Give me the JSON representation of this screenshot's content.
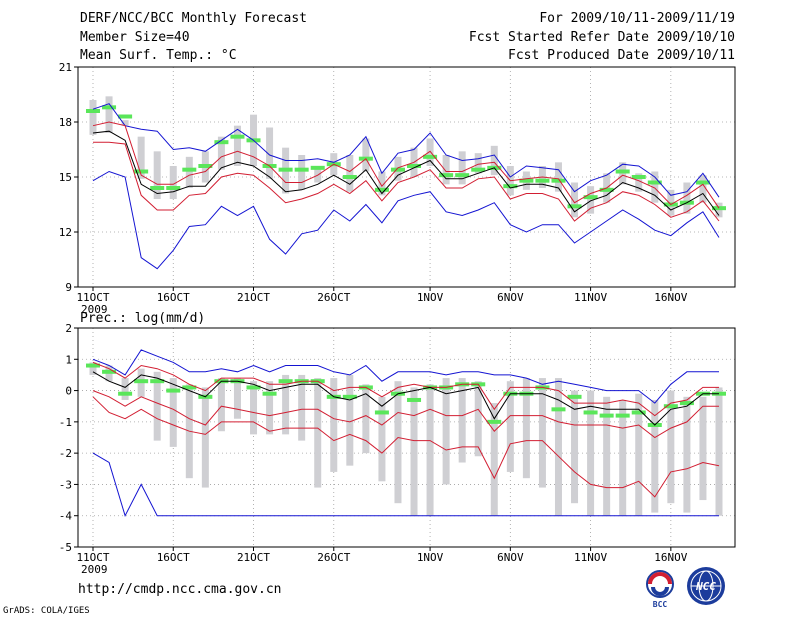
{
  "header": {
    "title": "DERF/NCC/BCC Monthly Forecast",
    "member": "Member Size=40",
    "variable": "Mean Surf. Temp.: °C",
    "period": "For 2009/10/11-2009/11/19",
    "refer": "Fcst Started Refer Date 2009/10/10",
    "produced": "Fcst Produced Date 2009/10/11"
  },
  "footer": {
    "url": "http://cmdp.ncc.cma.gov.cn",
    "grads": "GrADS: COLA/IGES",
    "logo_bcc": "BCC",
    "logo_ncc": "NCC"
  },
  "colors": {
    "max_min": "#1414d2",
    "spread": "#d21e32",
    "mean": "#000000",
    "median": "#5ae65a",
    "box": "#cfcfd3",
    "grid": "#a0a0a0"
  },
  "chart_data": [
    {
      "type": "line",
      "title": "Mean Surf. Temp.: °C",
      "days": 40,
      "x_tick_labels": [
        "11OCT",
        "16OCT",
        "21OCT",
        "26OCT",
        "1NOV",
        "6NOV",
        "11NOV",
        "16NOV"
      ],
      "x_tick_days": [
        0,
        5,
        10,
        15,
        21,
        26,
        31,
        36
      ],
      "year_label": "2009",
      "ylim": [
        9,
        21
      ],
      "y_ticks": [
        9,
        12,
        15,
        18,
        21
      ],
      "series": [
        {
          "name": "max",
          "values": [
            18.7,
            19.0,
            17.8,
            17.6,
            17.5,
            16.5,
            16.6,
            16.4,
            17.0,
            17.6,
            17.0,
            16.2,
            15.9,
            15.9,
            16.0,
            15.8,
            16.2,
            17.2,
            15.2,
            16.3,
            16.5,
            17.4,
            16.2,
            15.9,
            16.0,
            16.2,
            15.0,
            15.6,
            15.5,
            15.4,
            14.2,
            14.8,
            15.1,
            15.7,
            15.6,
            15.0,
            14.0,
            14.2,
            15.2,
            13.9
          ]
        },
        {
          "name": "upper",
          "values": [
            17.8,
            18.0,
            17.8,
            15.1,
            14.6,
            14.6,
            15.1,
            15.3,
            16.1,
            16.4,
            16.1,
            15.6,
            14.7,
            14.7,
            15.1,
            15.7,
            15.3,
            16.0,
            14.5,
            15.5,
            15.8,
            16.4,
            15.3,
            15.3,
            15.7,
            15.8,
            14.8,
            14.9,
            15.0,
            14.9,
            13.6,
            14.1,
            14.4,
            15.1,
            14.8,
            14.4,
            13.5,
            14.0,
            14.6,
            13.3
          ]
        },
        {
          "name": "mean",
          "values": [
            17.4,
            17.5,
            17.0,
            14.6,
            14.1,
            14.2,
            14.5,
            14.5,
            15.5,
            15.8,
            15.6,
            15.0,
            14.2,
            14.3,
            14.6,
            15.1,
            14.6,
            15.4,
            14.1,
            15.1,
            15.5,
            15.9,
            14.9,
            14.9,
            15.2,
            15.5,
            14.4,
            14.6,
            14.6,
            14.4,
            13.1,
            13.7,
            14.0,
            14.7,
            14.4,
            14.0,
            13.2,
            13.6,
            14.1,
            12.9
          ]
        },
        {
          "name": "lower",
          "values": [
            16.9,
            16.9,
            16.8,
            14.0,
            13.2,
            13.2,
            14.0,
            14.1,
            15.0,
            15.2,
            15.1,
            14.4,
            13.6,
            13.8,
            14.1,
            14.6,
            14.1,
            14.8,
            13.7,
            14.7,
            15.0,
            15.4,
            14.4,
            14.4,
            14.9,
            15.0,
            13.8,
            14.1,
            14.1,
            13.8,
            12.6,
            13.3,
            13.6,
            14.2,
            14.0,
            13.5,
            12.8,
            13.1,
            13.7,
            12.6
          ]
        },
        {
          "name": "min",
          "values": [
            14.8,
            15.3,
            15.0,
            10.6,
            10.0,
            11.0,
            12.3,
            12.4,
            13.4,
            12.9,
            13.4,
            11.6,
            10.8,
            11.9,
            12.1,
            13.2,
            12.6,
            13.5,
            12.5,
            13.7,
            14.0,
            14.2,
            13.1,
            12.9,
            13.2,
            13.6,
            12.4,
            12.0,
            12.4,
            12.4,
            11.4,
            12.0,
            12.6,
            13.2,
            12.7,
            12.1,
            11.8,
            12.5,
            13.1,
            11.7
          ]
        },
        {
          "name": "median",
          "values": [
            18.6,
            18.8,
            18.3,
            15.3,
            14.4,
            14.4,
            15.4,
            15.6,
            16.9,
            17.2,
            17.0,
            15.6,
            15.4,
            15.4,
            15.5,
            15.7,
            15.0,
            16.0,
            14.3,
            15.4,
            15.6,
            16.1,
            15.1,
            15.1,
            15.4,
            15.5,
            14.5,
            14.8,
            14.8,
            14.8,
            13.4,
            13.9,
            14.3,
            15.3,
            15.0,
            14.7,
            13.5,
            13.6,
            14.7,
            13.3
          ]
        },
        {
          "name": "box_high",
          "values": [
            19.2,
            19.4,
            18.1,
            17.2,
            16.4,
            15.6,
            16.1,
            16.4,
            17.2,
            17.8,
            18.4,
            17.7,
            16.6,
            16.2,
            15.6,
            16.3,
            16.2,
            17.1,
            15.3,
            16.1,
            16.6,
            17.1,
            16.2,
            16.4,
            16.3,
            16.7,
            15.6,
            15.3,
            15.6,
            15.8,
            14.7,
            14.5,
            15.2,
            15.8,
            15.2,
            15.3,
            14.3,
            14.7,
            15.1,
            13.6
          ]
        },
        {
          "name": "box_low",
          "values": [
            17.3,
            17.4,
            17.8,
            14.9,
            13.8,
            13.8,
            14.4,
            14.7,
            15.4,
            15.6,
            15.6,
            14.9,
            14.1,
            14.3,
            14.7,
            15.1,
            14.2,
            15.3,
            14.0,
            14.8,
            15.0,
            15.6,
            14.6,
            14.6,
            15.2,
            15.1,
            14.0,
            14.3,
            14.4,
            14.2,
            12.8,
            13.0,
            13.6,
            14.6,
            14.2,
            13.6,
            12.9,
            13.0,
            13.6,
            12.8
          ]
        }
      ]
    },
    {
      "type": "line",
      "title": "Prec.: log(mm/d)",
      "days": 40,
      "x_tick_labels": [
        "11OCT",
        "16OCT",
        "21OCT",
        "26OCT",
        "1NOV",
        "6NOV",
        "11NOV",
        "16NOV"
      ],
      "x_tick_days": [
        0,
        5,
        10,
        15,
        21,
        26,
        31,
        36
      ],
      "year_label": "2009",
      "ylim": [
        -5,
        2
      ],
      "y_ticks": [
        -5,
        -4,
        -3,
        -2,
        -1,
        0,
        1,
        2
      ],
      "series": [
        {
          "name": "max",
          "values": [
            1.0,
            0.8,
            0.5,
            1.3,
            1.1,
            0.9,
            0.6,
            0.6,
            0.7,
            0.6,
            0.8,
            0.6,
            0.8,
            0.8,
            0.8,
            0.6,
            0.5,
            0.8,
            0.3,
            0.6,
            0.6,
            0.6,
            0.5,
            0.6,
            0.6,
            0.5,
            0.5,
            0.4,
            0.2,
            0.3,
            0.2,
            0.1,
            0.0,
            0.0,
            0.0,
            -0.4,
            0.2,
            0.6,
            0.6,
            0.6
          ]
        },
        {
          "name": "upper",
          "values": [
            0.9,
            0.7,
            0.4,
            0.8,
            0.7,
            0.5,
            0.2,
            0.0,
            0.4,
            0.4,
            0.4,
            0.2,
            0.2,
            0.3,
            0.3,
            0.0,
            0.1,
            0.1,
            -0.2,
            0.1,
            0.2,
            0.1,
            0.1,
            0.2,
            0.2,
            -0.6,
            0.1,
            0.1,
            0.1,
            0.0,
            -0.4,
            -0.4,
            -0.4,
            -0.3,
            -0.4,
            -0.8,
            -0.4,
            -0.3,
            0.1,
            0.1
          ]
        },
        {
          "name": "mean",
          "values": [
            0.6,
            0.3,
            0.1,
            0.5,
            0.4,
            0.2,
            0.0,
            -0.2,
            0.3,
            0.3,
            0.2,
            0.0,
            0.1,
            0.2,
            0.2,
            -0.2,
            -0.3,
            -0.1,
            -0.5,
            -0.1,
            0.0,
            0.1,
            -0.1,
            0.0,
            0.1,
            -0.9,
            -0.1,
            -0.1,
            -0.1,
            -0.3,
            -0.6,
            -0.5,
            -0.6,
            -0.6,
            -0.6,
            -1.1,
            -0.6,
            -0.5,
            -0.1,
            -0.1
          ]
        },
        {
          "name": "lower",
          "values": [
            0.0,
            -0.2,
            -0.5,
            -0.2,
            -0.4,
            -0.6,
            -0.9,
            -1.1,
            -0.5,
            -0.6,
            -0.7,
            -0.8,
            -0.7,
            -0.6,
            -0.6,
            -0.9,
            -1.0,
            -0.8,
            -1.1,
            -0.7,
            -0.8,
            -0.6,
            -0.8,
            -0.8,
            -0.6,
            -1.3,
            -0.8,
            -0.8,
            -0.8,
            -1.0,
            -1.1,
            -1.1,
            -1.1,
            -1.2,
            -1.1,
            -1.5,
            -1.2,
            -1.0,
            -0.5,
            -0.5
          ]
        },
        {
          "name": "lower2",
          "values": [
            -0.2,
            -0.7,
            -0.9,
            -0.6,
            -0.9,
            -1.1,
            -1.3,
            -1.4,
            -1.0,
            -1.0,
            -1.0,
            -1.3,
            -1.2,
            -1.2,
            -1.2,
            -1.6,
            -1.4,
            -1.6,
            -2.0,
            -1.5,
            -1.6,
            -1.6,
            -1.9,
            -1.8,
            -1.8,
            -2.8,
            -1.7,
            -1.6,
            -1.6,
            -2.1,
            -2.6,
            -3.0,
            -3.1,
            -3.1,
            -2.9,
            -3.4,
            -2.6,
            -2.5,
            -2.3,
            -2.4
          ]
        },
        {
          "name": "min",
          "values": [
            -2.0,
            -2.3,
            -4.0,
            -3.0,
            -4.0,
            -4.0,
            -4.0,
            -4.0,
            -4.0,
            -4.0,
            -4.0,
            -4.0,
            -4.0,
            -4.0,
            -4.0,
            -4.0,
            -4.0,
            -4.0,
            -4.0,
            -4.0,
            -4.0,
            -4.0,
            -4.0,
            -4.0,
            -4.0,
            -4.0,
            -4.0,
            -4.0,
            -4.0,
            -4.0,
            -4.0,
            -4.0,
            -4.0,
            -4.0,
            -4.0,
            -4.0,
            -4.0,
            -4.0,
            -4.0,
            -4.0
          ]
        },
        {
          "name": "median",
          "values": [
            0.8,
            0.6,
            -0.1,
            0.3,
            0.3,
            0.0,
            0.1,
            -0.2,
            0.3,
            0.3,
            0.1,
            -0.1,
            0.3,
            0.3,
            0.3,
            -0.2,
            -0.2,
            0.1,
            -0.7,
            -0.1,
            -0.3,
            0.1,
            0.1,
            0.2,
            0.2,
            -1.0,
            -0.1,
            -0.1,
            0.1,
            -0.6,
            -0.2,
            -0.7,
            -0.8,
            -0.8,
            -0.7,
            -1.1,
            -0.5,
            -0.4,
            -0.1,
            -0.1
          ]
        },
        {
          "name": "box_high",
          "values": [
            0.9,
            0.8,
            0.4,
            0.7,
            0.6,
            0.4,
            0.2,
            0.1,
            0.4,
            0.4,
            0.3,
            0.3,
            0.5,
            0.5,
            0.4,
            0.4,
            0.5,
            0.2,
            -0.2,
            0.3,
            0.1,
            0.2,
            0.4,
            0.4,
            0.3,
            -0.4,
            0.3,
            0.4,
            0.4,
            0.4,
            0.0,
            0.0,
            -0.2,
            -0.3,
            -0.1,
            -0.3,
            0.0,
            -0.2,
            -0.2,
            0.1
          ]
        },
        {
          "name": "box_low",
          "values": [
            0.5,
            0.3,
            -0.3,
            -0.2,
            -1.6,
            -1.8,
            -2.8,
            -3.1,
            -1.3,
            -0.9,
            -1.4,
            -1.4,
            -1.4,
            -1.6,
            -3.1,
            -2.6,
            -2.4,
            -2.0,
            -2.9,
            -3.6,
            -4.0,
            -4.0,
            -3.0,
            -2.3,
            -2.1,
            -4.0,
            -2.6,
            -2.8,
            -3.1,
            -4.0,
            -3.6,
            -4.0,
            -4.0,
            -4.0,
            -4.0,
            -3.9,
            -3.6,
            -3.9,
            -3.5,
            -4.0
          ]
        }
      ]
    }
  ]
}
